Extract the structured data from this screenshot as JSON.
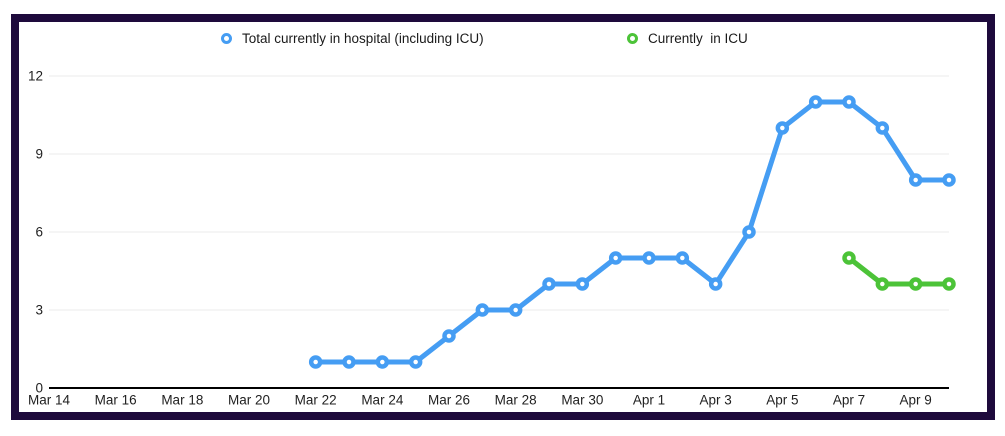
{
  "frame": {
    "border_color": "#1e0a3c",
    "background_color": "#ffffff"
  },
  "legend": {
    "position": "top",
    "items": [
      {
        "label": "Total currently in hospital (including ICU)",
        "color": "#459df3"
      },
      {
        "label": "Currently  in ICU",
        "color": "#4cc338"
      }
    ]
  },
  "chart_data": {
    "type": "line",
    "title": "",
    "xlabel": "",
    "ylabel": "",
    "ylim": [
      0,
      12
    ],
    "y_ticks": [
      0,
      3,
      6,
      9,
      12
    ],
    "x_tick_labels": [
      "Mar 14",
      "Mar 16",
      "Mar 18",
      "Mar 20",
      "Mar 22",
      "Mar 24",
      "Mar 26",
      "Mar 28",
      "Mar 30",
      "Apr 1",
      "Apr 3",
      "Apr 5",
      "Apr 7",
      "Apr 9"
    ],
    "x_tick_days": [
      0,
      2,
      4,
      6,
      8,
      10,
      12,
      14,
      16,
      18,
      20,
      22,
      24,
      26
    ],
    "grid": "horizontal-only",
    "gridline_color": "#ebebeb",
    "axis_line_color": "#000000",
    "legend_position": "top",
    "series": [
      {
        "name": "Total currently in hospital (including ICU)",
        "color": "#459df3",
        "marker": "open-circle",
        "points": [
          {
            "date": "Mar 22",
            "day": 8,
            "value": 1
          },
          {
            "date": "Mar 23",
            "day": 9,
            "value": 1
          },
          {
            "date": "Mar 24",
            "day": 10,
            "value": 1
          },
          {
            "date": "Mar 25",
            "day": 11,
            "value": 1
          },
          {
            "date": "Mar 26",
            "day": 12,
            "value": 2
          },
          {
            "date": "Mar 27",
            "day": 13,
            "value": 3
          },
          {
            "date": "Mar 28",
            "day": 14,
            "value": 3
          },
          {
            "date": "Mar 29",
            "day": 15,
            "value": 4
          },
          {
            "date": "Mar 30",
            "day": 16,
            "value": 4
          },
          {
            "date": "Mar 31",
            "day": 17,
            "value": 5
          },
          {
            "date": "Apr 1",
            "day": 18,
            "value": 5
          },
          {
            "date": "Apr 2",
            "day": 19,
            "value": 5
          },
          {
            "date": "Apr 3",
            "day": 20,
            "value": 4
          },
          {
            "date": "Apr 4",
            "day": 21,
            "value": 6
          },
          {
            "date": "Apr 5",
            "day": 22,
            "value": 10
          },
          {
            "date": "Apr 6",
            "day": 23,
            "value": 11
          },
          {
            "date": "Apr 7",
            "day": 24,
            "value": 11
          },
          {
            "date": "Apr 8",
            "day": 25,
            "value": 10
          },
          {
            "date": "Apr 9",
            "day": 26,
            "value": 8
          },
          {
            "date": "Apr 10",
            "day": 27,
            "value": 8
          }
        ]
      },
      {
        "name": "Currently  in ICU",
        "color": "#4cc338",
        "marker": "open-circle",
        "points": [
          {
            "date": "Apr 7",
            "day": 24,
            "value": 5
          },
          {
            "date": "Apr 8",
            "day": 25,
            "value": 4
          },
          {
            "date": "Apr 9",
            "day": 26,
            "value": 4
          },
          {
            "date": "Apr 10",
            "day": 27,
            "value": 4
          }
        ]
      }
    ]
  }
}
